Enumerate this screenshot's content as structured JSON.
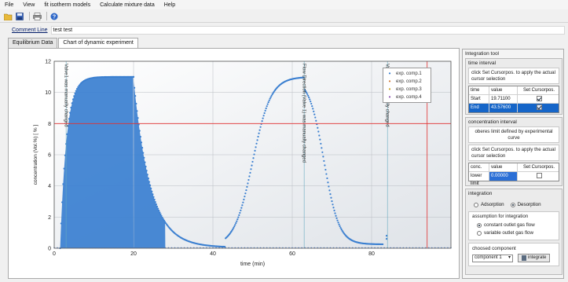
{
  "menu": [
    "File",
    "View",
    "fit isotherm models",
    "Calculate mixture data",
    "Help"
  ],
  "comment": {
    "label": "Comment Line",
    "value": "test test"
  },
  "tabs": [
    {
      "label": "Equilibrium Data",
      "active": false
    },
    {
      "label": "Chart of dynamic experiment",
      "active": true
    }
  ],
  "chart_data": {
    "type": "scatter",
    "xlabel": "time (min)",
    "ylabel": "concentration (Vol.%) [ % ]",
    "xlim": [
      0,
      100
    ],
    "ylim": [
      0,
      12
    ],
    "x_ticks": [
      "0",
      "20",
      "40",
      "60",
      "80"
    ],
    "y_ticks": [
      "0",
      "2",
      "4",
      "6",
      "8",
      "10",
      "12"
    ],
    "grid": true,
    "legend_position": "top-right",
    "series": [
      {
        "name": "exp. comp.1",
        "color": "#3a7fd0"
      },
      {
        "name": "exp. comp.2",
        "color": "#d07a3a"
      },
      {
        "name": "exp. comp.3",
        "color": "#c8a020"
      },
      {
        "name": "exp. comp.4",
        "color": "#8a4fb0"
      }
    ],
    "cursor_lines": {
      "vertical_x": 94,
      "horizontal_y": 8
    },
    "annotations": [
      {
        "x": 3,
        "text": "Valve1 was manually changed"
      },
      {
        "x": 63,
        "text": "Flow Direction (Valve 1) was manually changed"
      },
      {
        "x": 84,
        "text": "Valve2 was manually changed"
      }
    ],
    "breakthrough_1": {
      "start": 1.5,
      "plateau": 11,
      "end": 20
    },
    "desorption_1": {
      "start": 20,
      "end": 43
    },
    "breakthrough_2": {
      "start": 43,
      "plateau": 11,
      "end": 63
    },
    "desorption_2": {
      "start": 63,
      "end": 83
    }
  },
  "tool": {
    "title": "Integration tool",
    "time_interval": {
      "title": "time interval",
      "hint": "click Set Cursorpos. to apply the actual cursor selection",
      "headers": [
        "time",
        "value",
        "Set Cursorpos."
      ],
      "rows": [
        {
          "label": "Start",
          "value": "19.71100",
          "checked": true,
          "selected": false
        },
        {
          "label": "End",
          "value": "43.57600",
          "checked": true,
          "selected": true
        }
      ]
    },
    "concentration_interval": {
      "title": "concentration interval",
      "hint1": "oberes limit defined by experimental curve",
      "hint2": "click Set Cursorpos. to apply the actual cursor selection",
      "headers": [
        "conc.",
        "value",
        "Set Cursorpos."
      ],
      "rows": [
        {
          "label": "lower limit",
          "value": "0.00000",
          "checked": false
        }
      ]
    },
    "integration": {
      "title": "integration",
      "modes": [
        {
          "label": "Adsorption",
          "on": false
        },
        {
          "label": "Desorption",
          "on": true
        }
      ],
      "assumption_title": "assumption for integration",
      "assumptions": [
        {
          "label": "constant outlet gas flow",
          "on": true
        },
        {
          "label": "variable outlet gas flow",
          "on": false
        }
      ],
      "chosen_title": "choosed component",
      "chosen_value": "component 1",
      "integrate_label": "integrate"
    }
  }
}
